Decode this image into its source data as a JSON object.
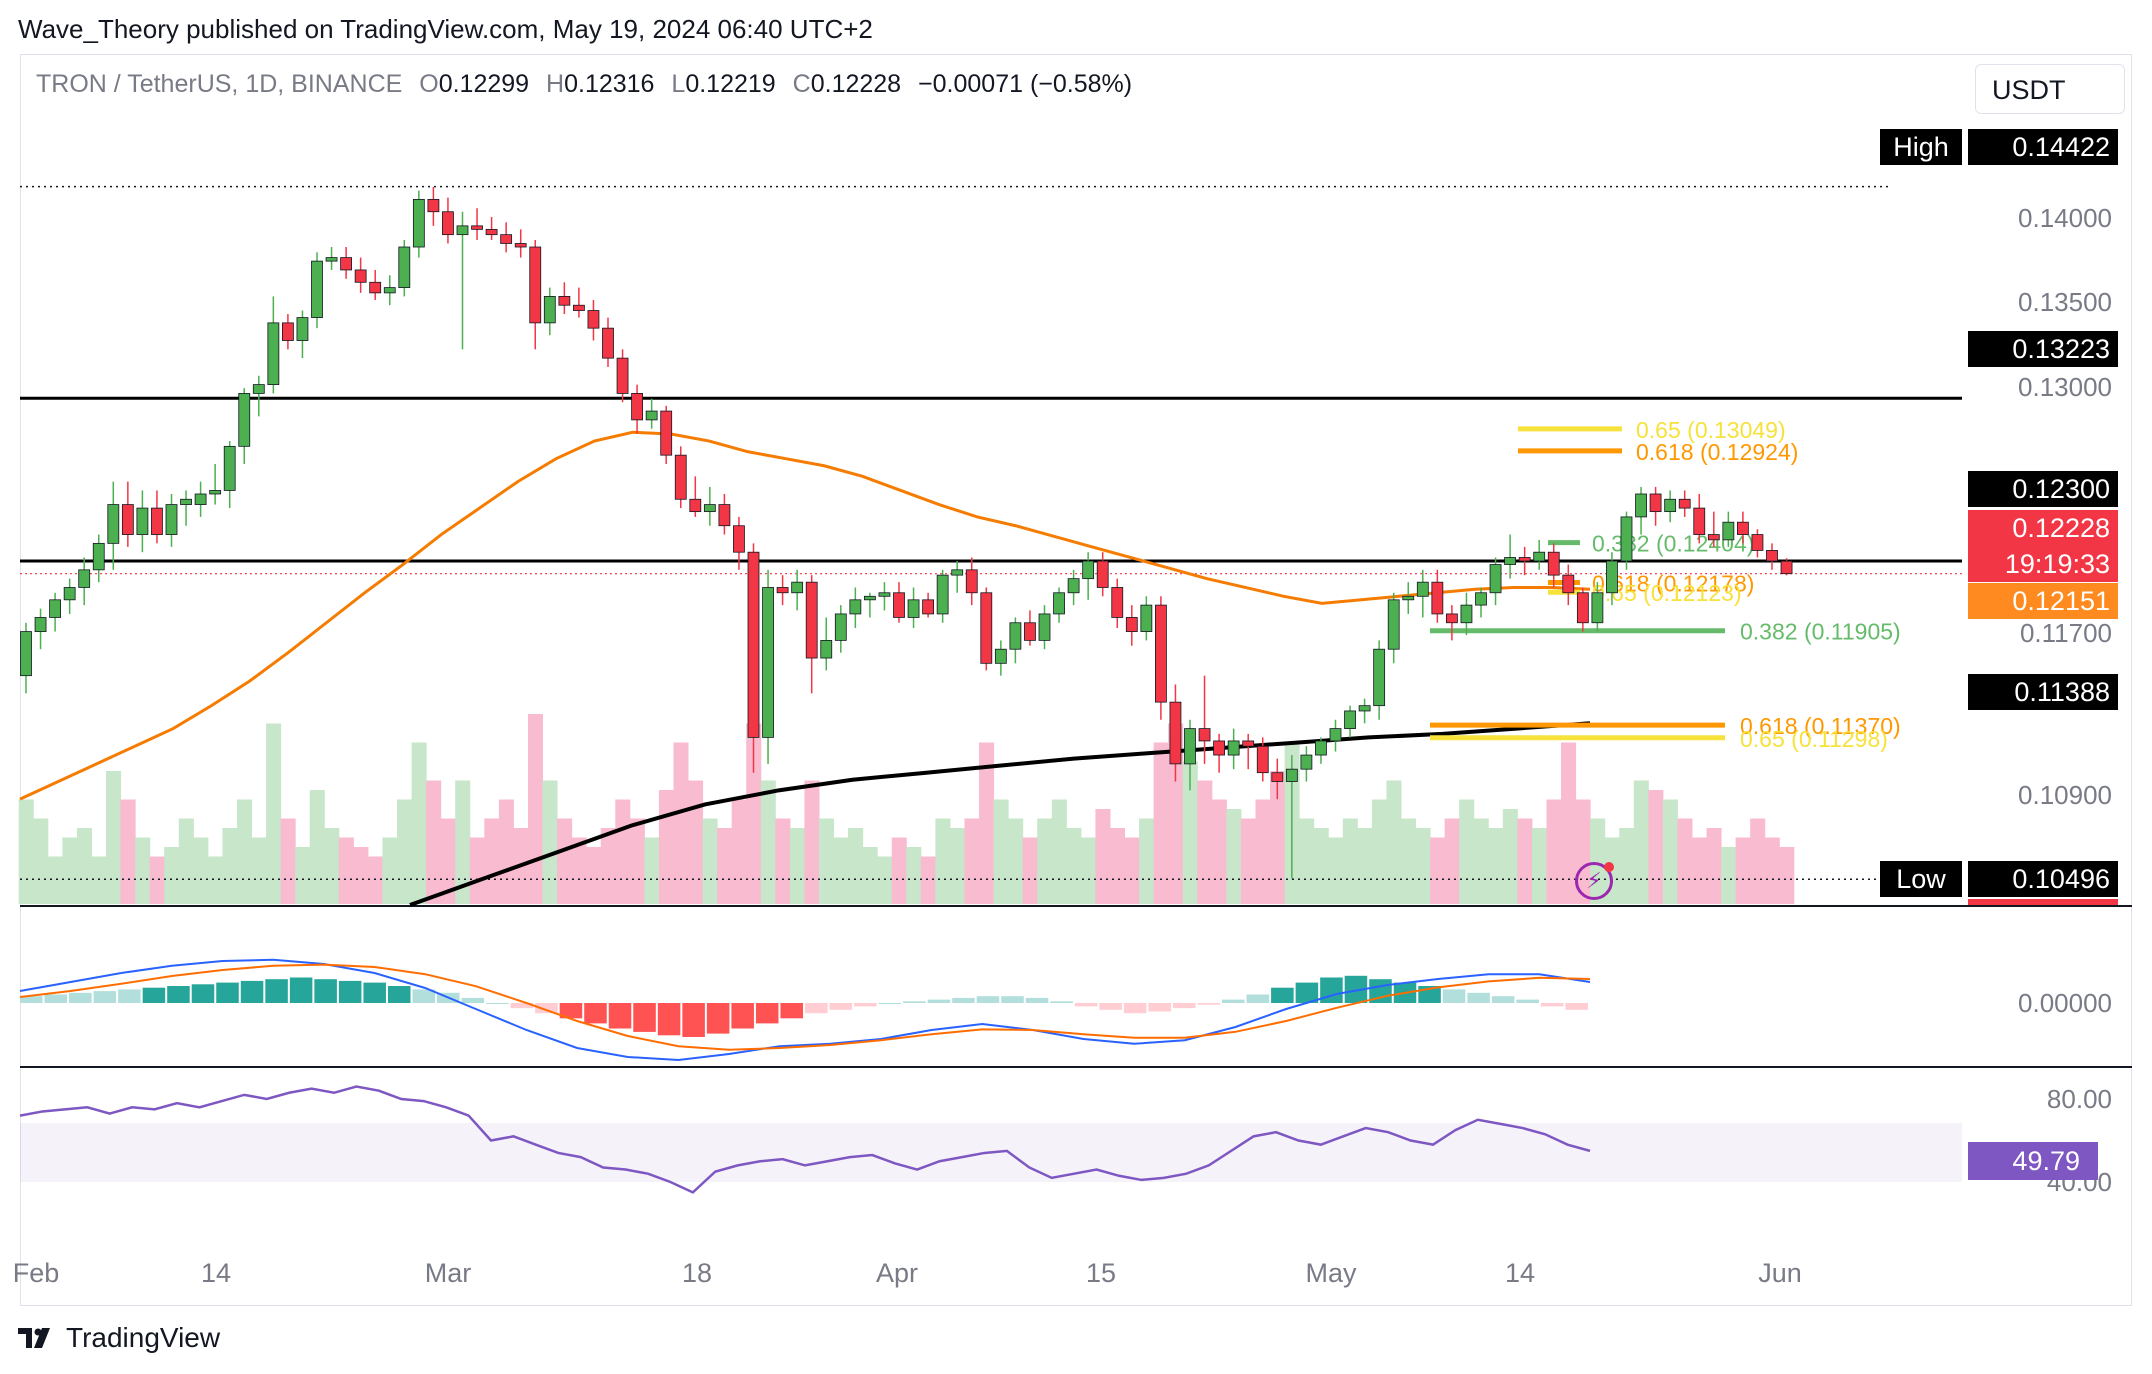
{
  "publisher_line": "Wave_Theory published on TradingView.com, May 19, 2024 06:40 UTC+2",
  "legend": {
    "symbol": "TRON / TetherUS, 1D, BINANCE",
    "o_label": "O",
    "o": "0.12299",
    "h_label": "H",
    "h": "0.12316",
    "l_label": "L",
    "l": "0.12219",
    "c_label": "C",
    "c": "0.12228",
    "change": "−0.00071 (−0.58%)"
  },
  "currency": "USDT",
  "brand": "TradingView",
  "colors": {
    "up": "#4caf50",
    "down": "#f23645",
    "ema50": "#f57c00",
    "ema200": "#000000",
    "macd": "#2962ff",
    "signal": "#ff6d00",
    "rsi": "#7e57c2",
    "volume_up": "#c8e6c9",
    "volume_down": "#f8bbd0",
    "fib_yellow": "#f7e13b",
    "fib_orange": "#ff9800",
    "fib_green": "#66bb6a"
  },
  "chart_data": {
    "type": "candlestick",
    "interval": "1D",
    "ylim": [
      0.1035,
      0.148
    ],
    "price_axis_ticks": [
      "0.14000",
      "0.13500",
      "0.13000",
      "0.11700",
      "0.10900",
      "0.00000",
      "80.00",
      "40.00"
    ],
    "x_tick_labels": [
      "Feb",
      "14",
      "Mar",
      "18",
      "Apr",
      "15",
      "May",
      "14",
      "Jun"
    ],
    "high_marker": {
      "label": "High",
      "value": "0.14422"
    },
    "low_marker": {
      "label": "Low",
      "value": "0.10496"
    },
    "price_labels": [
      {
        "value": "0.13223",
        "style": "black"
      },
      {
        "value": "0.12300",
        "style": "black"
      },
      {
        "value": "0.12228",
        "style": "red",
        "countdown": "19:19:33"
      },
      {
        "value": "0.12151",
        "style": "orange"
      },
      {
        "value": "0.11388",
        "style": "black"
      }
    ],
    "horizontal_lines": [
      0.13223,
      0.123
    ],
    "fib_levels": [
      {
        "label": "0.65 (0.13049)",
        "price": 0.13049,
        "color": "yellow",
        "side": "upper"
      },
      {
        "label": "0.618 (0.12924)",
        "price": 0.12924,
        "color": "orange",
        "side": "upper"
      },
      {
        "label": "0.382 (0.12404)",
        "price": 0.12404,
        "color": "green",
        "side": "upper"
      },
      {
        "label": "0.618 (0.12178)",
        "price": 0.12178,
        "color": "orange",
        "side": "upper"
      },
      {
        "label": "0.65 (0.12123)",
        "price": 0.12123,
        "color": "yellow",
        "side": "upper"
      },
      {
        "label": "0.382 (0.11905)",
        "price": 0.11905,
        "color": "green",
        "side": "lower"
      },
      {
        "label": "0.618 (0.11370)",
        "price": 0.1137,
        "color": "orange",
        "side": "lower"
      },
      {
        "label": "0.65 (0.11298)",
        "price": 0.11298,
        "color": "yellow",
        "side": "lower"
      }
    ],
    "candles": [
      [
        0.1165,
        0.1195,
        0.1155,
        0.119
      ],
      [
        0.119,
        0.1203,
        0.118,
        0.1198
      ],
      [
        0.1198,
        0.1212,
        0.119,
        0.1208
      ],
      [
        0.1208,
        0.122,
        0.12,
        0.1215
      ],
      [
        0.1215,
        0.1232,
        0.1205,
        0.1225
      ],
      [
        0.1225,
        0.1245,
        0.1218,
        0.124
      ],
      [
        0.124,
        0.1275,
        0.1225,
        0.1262
      ],
      [
        0.1262,
        0.1275,
        0.1238,
        0.1245
      ],
      [
        0.1245,
        0.127,
        0.1235,
        0.126
      ],
      [
        0.126,
        0.127,
        0.124,
        0.1245
      ],
      [
        0.1245,
        0.1268,
        0.1238,
        0.1262
      ],
      [
        0.1262,
        0.127,
        0.125,
        0.1265
      ],
      [
        0.1262,
        0.1275,
        0.1255,
        0.1268
      ],
      [
        0.1268,
        0.1285,
        0.1262,
        0.127
      ],
      [
        0.127,
        0.1298,
        0.126,
        0.1295
      ],
      [
        0.1295,
        0.1328,
        0.1285,
        0.1325
      ],
      [
        0.1325,
        0.1335,
        0.1312,
        0.133
      ],
      [
        0.133,
        0.138,
        0.1325,
        0.1365
      ],
      [
        0.1365,
        0.137,
        0.135,
        0.1355
      ],
      [
        0.1355,
        0.1372,
        0.1345,
        0.1368
      ],
      [
        0.1368,
        0.1405,
        0.1362,
        0.14
      ],
      [
        0.14,
        0.1408,
        0.1395,
        0.1402
      ],
      [
        0.1402,
        0.1408,
        0.139,
        0.1395
      ],
      [
        0.1395,
        0.1402,
        0.1382,
        0.1388
      ],
      [
        0.1388,
        0.1395,
        0.1378,
        0.1382
      ],
      [
        0.1382,
        0.1392,
        0.1375,
        0.1385
      ],
      [
        0.1385,
        0.1412,
        0.138,
        0.1408
      ],
      [
        0.1408,
        0.144,
        0.1402,
        0.1435
      ],
      [
        0.1435,
        0.1442,
        0.142,
        0.1428
      ],
      [
        0.1428,
        0.1436,
        0.141,
        0.1415
      ],
      [
        0.1415,
        0.1428,
        0.135,
        0.142
      ],
      [
        0.142,
        0.143,
        0.1412,
        0.1418
      ],
      [
        0.1418,
        0.1425,
        0.1412,
        0.1415
      ],
      [
        0.1415,
        0.1422,
        0.1405,
        0.141
      ],
      [
        0.141,
        0.1418,
        0.1402,
        0.1408
      ],
      [
        0.1408,
        0.1412,
        0.135,
        0.1365
      ],
      [
        0.1365,
        0.1385,
        0.1358,
        0.138
      ],
      [
        0.138,
        0.1388,
        0.137,
        0.1375
      ],
      [
        0.1375,
        0.1385,
        0.1368,
        0.1372
      ],
      [
        0.1372,
        0.1378,
        0.1355,
        0.1362
      ],
      [
        0.1362,
        0.1368,
        0.134,
        0.1345
      ],
      [
        0.1345,
        0.135,
        0.132,
        0.1325
      ],
      [
        0.1325,
        0.133,
        0.1302,
        0.131
      ],
      [
        0.131,
        0.1322,
        0.1305,
        0.1315
      ],
      [
        0.1315,
        0.1318,
        0.1285,
        0.129
      ],
      [
        0.129,
        0.1295,
        0.126,
        0.1265
      ],
      [
        0.1265,
        0.1278,
        0.1255,
        0.1258
      ],
      [
        0.1258,
        0.1272,
        0.125,
        0.1262
      ],
      [
        0.1262,
        0.1268,
        0.1245,
        0.125
      ],
      [
        0.125,
        0.1255,
        0.1225,
        0.1235
      ],
      [
        0.1235,
        0.124,
        0.111,
        0.113
      ],
      [
        0.113,
        0.1225,
        0.1115,
        0.1215
      ],
      [
        0.1215,
        0.1222,
        0.1205,
        0.1212
      ],
      [
        0.1212,
        0.1225,
        0.1202,
        0.1218
      ],
      [
        0.1218,
        0.1222,
        0.1155,
        0.1175
      ],
      [
        0.1175,
        0.1198,
        0.1168,
        0.1185
      ],
      [
        0.1185,
        0.1205,
        0.1178,
        0.12
      ],
      [
        0.12,
        0.1215,
        0.1192,
        0.1208
      ],
      [
        0.1208,
        0.1212,
        0.1198,
        0.121
      ],
      [
        0.121,
        0.1218,
        0.1202,
        0.1212
      ],
      [
        0.1212,
        0.1218,
        0.1195,
        0.1198
      ],
      [
        0.1198,
        0.1215,
        0.1192,
        0.1208
      ],
      [
        0.1208,
        0.1212,
        0.1198,
        0.12
      ],
      [
        0.12,
        0.1225,
        0.1195,
        0.1222
      ],
      [
        0.1222,
        0.123,
        0.1212,
        0.1225
      ],
      [
        0.1225,
        0.1232,
        0.1205,
        0.1212
      ],
      [
        0.1212,
        0.1215,
        0.1168,
        0.1172
      ],
      [
        0.1172,
        0.1185,
        0.1165,
        0.118
      ],
      [
        0.118,
        0.1198,
        0.1172,
        0.1195
      ],
      [
        0.1195,
        0.1202,
        0.1182,
        0.1185
      ],
      [
        0.1185,
        0.1205,
        0.118,
        0.12
      ],
      [
        0.12,
        0.1215,
        0.1195,
        0.1212
      ],
      [
        0.1212,
        0.1225,
        0.1205,
        0.122
      ],
      [
        0.122,
        0.1235,
        0.1208,
        0.123
      ],
      [
        0.123,
        0.1235,
        0.121,
        0.1215
      ],
      [
        0.1215,
        0.122,
        0.1192,
        0.1198
      ],
      [
        0.1198,
        0.1205,
        0.1182,
        0.119
      ],
      [
        0.119,
        0.121,
        0.1185,
        0.1205
      ],
      [
        0.1205,
        0.121,
        0.114,
        0.115
      ],
      [
        0.115,
        0.116,
        0.1105,
        0.1115
      ],
      [
        0.1115,
        0.114,
        0.11,
        0.1135
      ],
      [
        0.1135,
        0.1165,
        0.1115,
        0.1128
      ],
      [
        0.1128,
        0.1132,
        0.111,
        0.112
      ],
      [
        0.112,
        0.1135,
        0.1112,
        0.1128
      ],
      [
        0.1128,
        0.1132,
        0.1112,
        0.1125
      ],
      [
        0.1125,
        0.113,
        0.1105,
        0.111
      ],
      [
        0.111,
        0.1118,
        0.1095,
        0.1105
      ],
      [
        0.1105,
        0.112,
        0.105,
        0.1112
      ],
      [
        0.1112,
        0.1125,
        0.1105,
        0.112
      ],
      [
        0.112,
        0.113,
        0.1115,
        0.1128
      ],
      [
        0.1128,
        0.114,
        0.1122,
        0.1135
      ],
      [
        0.1135,
        0.1148,
        0.113,
        0.1145
      ],
      [
        0.1145,
        0.1152,
        0.1138,
        0.1148
      ],
      [
        0.1148,
        0.1185,
        0.114,
        0.118
      ],
      [
        0.118,
        0.1212,
        0.1172,
        0.1208
      ],
      [
        0.1208,
        0.1218,
        0.12,
        0.121
      ],
      [
        0.121,
        0.1225,
        0.1198,
        0.1218
      ],
      [
        0.1218,
        0.1225,
        0.1195,
        0.12
      ],
      [
        0.12,
        0.1205,
        0.1185,
        0.1195
      ],
      [
        0.1195,
        0.1212,
        0.1188,
        0.1205
      ],
      [
        0.1205,
        0.1215,
        0.1198,
        0.1212
      ],
      [
        0.1212,
        0.1232,
        0.1205,
        0.1228
      ],
      [
        0.1228,
        0.1245,
        0.122,
        0.1232
      ],
      [
        0.1232,
        0.1238,
        0.1222,
        0.123
      ],
      [
        0.123,
        0.1242,
        0.1225,
        0.1235
      ],
      [
        0.1235,
        0.124,
        0.1215,
        0.1222
      ],
      [
        0.1222,
        0.1228,
        0.1205,
        0.1212
      ],
      [
        0.1212,
        0.1215,
        0.119,
        0.1195
      ],
      [
        0.1195,
        0.1218,
        0.119,
        0.1212
      ],
      [
        0.1212,
        0.1235,
        0.1205,
        0.123
      ],
      [
        0.123,
        0.1258,
        0.1225,
        0.1255
      ],
      [
        0.1255,
        0.1272,
        0.1245,
        0.1268
      ],
      [
        0.1268,
        0.1272,
        0.125,
        0.1258
      ],
      [
        0.1258,
        0.127,
        0.1252,
        0.1265
      ],
      [
        0.1265,
        0.127,
        0.1255,
        0.126
      ],
      [
        0.126,
        0.1268,
        0.124,
        0.1245
      ],
      [
        0.1245,
        0.1258,
        0.1238,
        0.1242
      ],
      [
        0.1242,
        0.1258,
        0.1238,
        0.1252
      ],
      [
        0.1252,
        0.1258,
        0.124,
        0.1245
      ],
      [
        0.1245,
        0.1248,
        0.1232,
        0.1236
      ],
      [
        0.1236,
        0.124,
        0.1225,
        0.123
      ],
      [
        0.12299,
        0.12316,
        0.12219,
        0.12228
      ]
    ],
    "volume": [
      0.55,
      0.45,
      0.25,
      0.35,
      0.4,
      0.25,
      0.7,
      0.55,
      0.35,
      0.25,
      0.3,
      0.45,
      0.35,
      0.25,
      0.4,
      0.55,
      0.35,
      0.95,
      0.45,
      0.3,
      0.6,
      0.4,
      0.35,
      0.3,
      0.25,
      0.35,
      0.55,
      0.85,
      0.65,
      0.45,
      0.65,
      0.35,
      0.45,
      0.55,
      0.4,
      1.0,
      0.65,
      0.45,
      0.35,
      0.3,
      0.4,
      0.55,
      0.45,
      0.35,
      0.6,
      0.85,
      0.65,
      0.45,
      0.4,
      0.55,
      0.95,
      0.65,
      0.45,
      0.4,
      0.65,
      0.45,
      0.35,
      0.4,
      0.3,
      0.25,
      0.35,
      0.3,
      0.25,
      0.45,
      0.4,
      0.45,
      0.85,
      0.55,
      0.45,
      0.35,
      0.45,
      0.55,
      0.4,
      0.35,
      0.5,
      0.4,
      0.35,
      0.45,
      0.85,
      0.95,
      0.75,
      0.65,
      0.55,
      0.5,
      0.45,
      0.55,
      0.7,
      0.85,
      0.45,
      0.4,
      0.35,
      0.45,
      0.4,
      0.55,
      0.65,
      0.45,
      0.4,
      0.35,
      0.45,
      0.55,
      0.45,
      0.4,
      0.5,
      0.45,
      0.4,
      0.55,
      0.85,
      0.55,
      0.45,
      0.35,
      0.4,
      0.65,
      0.6,
      0.55,
      0.45,
      0.35,
      0.4,
      0.3,
      0.35,
      0.45,
      0.35,
      0.3
    ],
    "ema50": [
      0.1095,
      0.1105,
      0.1115,
      0.1125,
      0.1135,
      0.1148,
      0.1162,
      0.1178,
      0.1195,
      0.1212,
      0.1228,
      0.1245,
      0.126,
      0.1275,
      0.1288,
      0.1298,
      0.1303,
      0.1302,
      0.1298,
      0.1292,
      0.1288,
      0.1284,
      0.1278,
      0.127,
      0.1262,
      0.1255,
      0.125,
      0.1244,
      0.1238,
      0.1232,
      0.1226,
      0.122,
      0.1215,
      0.121,
      0.1206,
      0.1208,
      0.121,
      0.1212,
      0.1214,
      0.1215,
      0.1215,
      0.1214
    ],
    "ema200": [
      0.1035,
      0.105,
      0.1065,
      0.108,
      0.1092,
      0.11,
      0.1106,
      0.111,
      0.1114,
      0.1118,
      0.1121,
      0.1124,
      0.1127,
      0.113,
      0.1132,
      0.1135,
      0.1138
    ],
    "macd_hist": [
      0.2,
      0.25,
      0.3,
      0.35,
      0.4,
      0.45,
      0.5,
      0.55,
      0.6,
      0.65,
      0.7,
      0.75,
      0.7,
      0.65,
      0.6,
      0.5,
      0.4,
      0.3,
      0.15,
      0.0,
      -0.15,
      -0.3,
      -0.45,
      -0.6,
      -0.75,
      -0.85,
      -0.95,
      -1.0,
      -0.9,
      -0.75,
      -0.6,
      -0.45,
      -0.3,
      -0.2,
      -0.1,
      0.0,
      0.05,
      0.1,
      0.15,
      0.2,
      0.2,
      0.15,
      0.05,
      -0.1,
      -0.2,
      -0.3,
      -0.25,
      -0.15,
      -0.05,
      0.1,
      0.25,
      0.45,
      0.6,
      0.75,
      0.8,
      0.7,
      0.6,
      0.5,
      0.4,
      0.3,
      0.2,
      0.1,
      -0.1,
      -0.2
    ],
    "macd_line": [
      0.2,
      0.35,
      0.5,
      0.62,
      0.7,
      0.72,
      0.65,
      0.5,
      0.25,
      -0.1,
      -0.45,
      -0.75,
      -0.9,
      -0.95,
      -0.85,
      -0.72,
      -0.68,
      -0.6,
      -0.45,
      -0.35,
      -0.45,
      -0.6,
      -0.68,
      -0.62,
      -0.4,
      -0.1,
      0.15,
      0.3,
      0.4,
      0.48,
      0.48,
      0.35
    ],
    "signal_line": [
      0.1,
      0.2,
      0.32,
      0.45,
      0.55,
      0.62,
      0.64,
      0.6,
      0.48,
      0.28,
      0.0,
      -0.3,
      -0.55,
      -0.72,
      -0.78,
      -0.75,
      -0.7,
      -0.62,
      -0.52,
      -0.44,
      -0.45,
      -0.52,
      -0.58,
      -0.58,
      -0.48,
      -0.3,
      -0.08,
      0.12,
      0.26,
      0.36,
      0.42,
      0.4
    ],
    "rsi": {
      "levels": [
        80,
        40
      ],
      "current": "49.79",
      "values": [
        72,
        74,
        75,
        76,
        73,
        76,
        75,
        78,
        76,
        79,
        82,
        80,
        83,
        85,
        83,
        86,
        84,
        80,
        79,
        76,
        72,
        60,
        62,
        58,
        54,
        52,
        47,
        46,
        44,
        40,
        35,
        45,
        48,
        50,
        51,
        48,
        50,
        52,
        53,
        49,
        46,
        50,
        52,
        54,
        55,
        47,
        42,
        44,
        46,
        43,
        41,
        42,
        44,
        48,
        55,
        62,
        64,
        60,
        58,
        62,
        66,
        64,
        60,
        58,
        65,
        70,
        68,
        66,
        63,
        58,
        55
      ]
    }
  }
}
